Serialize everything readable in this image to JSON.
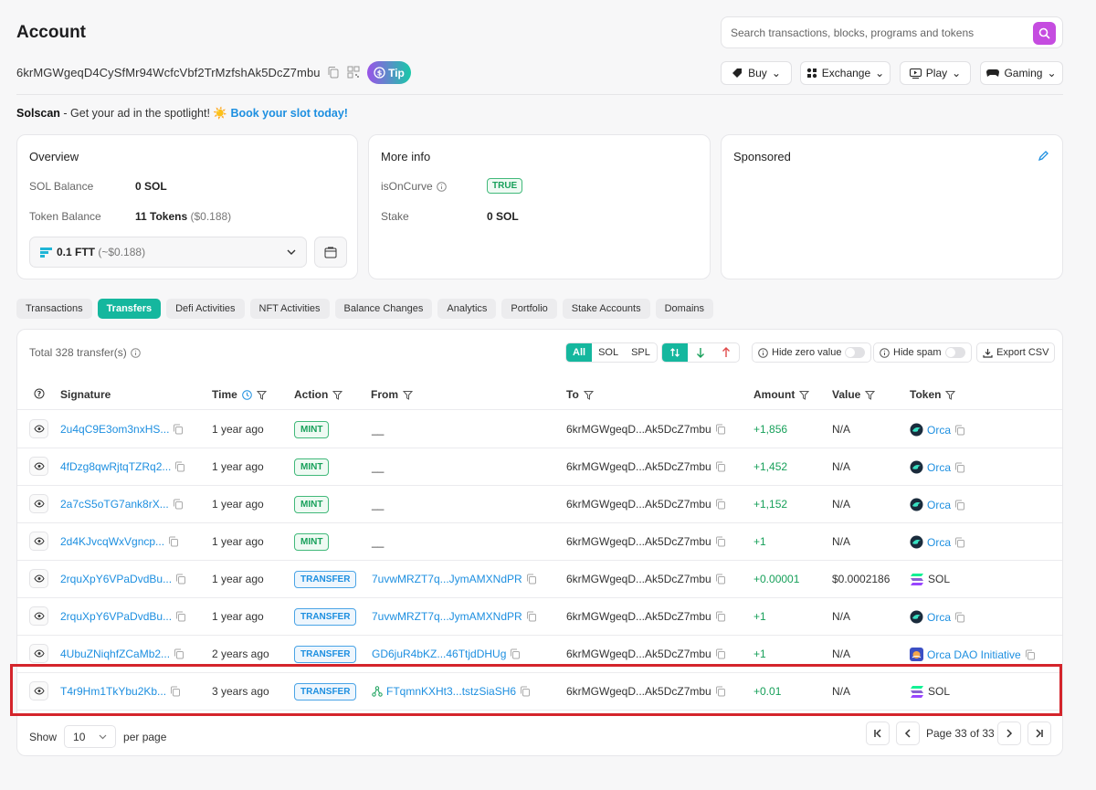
{
  "header": {
    "title": "Account",
    "search_placeholder": "Search transactions, blocks, programs and tokens",
    "address": "6krMGWgeqD4CySfMr94WcfcVbf2TrMzfshAk5DcZ7mbu",
    "tip_label": "Tip",
    "nav": [
      {
        "label": "Buy",
        "icon": "buy-icon"
      },
      {
        "label": "Exchange",
        "icon": "exchange-icon"
      },
      {
        "label": "Play",
        "icon": "play-icon"
      },
      {
        "label": "Gaming",
        "icon": "gamepad-icon"
      }
    ]
  },
  "ad": {
    "brand": "Solscan",
    "text": " - Get your ad in the spotlight! ",
    "emoji": "☀️",
    "link": "Book your slot today!"
  },
  "overview": {
    "title": "Overview",
    "sol_balance_label": "SOL Balance",
    "sol_balance_value": "0 SOL",
    "token_balance_label": "Token Balance",
    "token_balance_value": "11 Tokens",
    "token_balance_usd": "($0.188)",
    "selected_token": "0.1 FTT",
    "selected_token_usd": "(~$0.188)"
  },
  "more_info": {
    "title": "More info",
    "curve_label": "isOnCurve",
    "curve_value": "TRUE",
    "stake_label": "Stake",
    "stake_value": "0 SOL"
  },
  "sponsored": {
    "title": "Sponsored"
  },
  "tabs": [
    "Transactions",
    "Transfers",
    "Defi Activities",
    "NFT Activities",
    "Balance Changes",
    "Analytics",
    "Portfolio",
    "Stake Accounts",
    "Domains"
  ],
  "active_tab": "Transfers",
  "table": {
    "total": "Total 328 transfer(s)",
    "filter_type": [
      "All",
      "SOL",
      "SPL"
    ],
    "hide_zero": "Hide zero value",
    "hide_spam": "Hide spam",
    "export": "Export CSV",
    "columns": [
      "Signature",
      "Time",
      "Action",
      "From",
      "To",
      "Amount",
      "Value",
      "Token"
    ],
    "rows": [
      {
        "signature": "2u4qC9E3om3nxHS...",
        "time": "1 year ago",
        "action": "MINT",
        "from": "__",
        "to": "6krMGWgeqD...Ak5DcZ7mbu",
        "amount": "+1,856",
        "value": "N/A",
        "token": "Orca",
        "token_icon": "orca"
      },
      {
        "signature": "4fDzg8qwRjtqTZRq2...",
        "time": "1 year ago",
        "action": "MINT",
        "from": "__",
        "to": "6krMGWgeqD...Ak5DcZ7mbu",
        "amount": "+1,452",
        "value": "N/A",
        "token": "Orca",
        "token_icon": "orca"
      },
      {
        "signature": "2a7cS5oTG7ank8rX...",
        "time": "1 year ago",
        "action": "MINT",
        "from": "__",
        "to": "6krMGWgeqD...Ak5DcZ7mbu",
        "amount": "+1,152",
        "value": "N/A",
        "token": "Orca",
        "token_icon": "orca"
      },
      {
        "signature": "2d4KJvcqWxVgncp...",
        "time": "1 year ago",
        "action": "MINT",
        "from": "__",
        "to": "6krMGWgeqD...Ak5DcZ7mbu",
        "amount": "+1",
        "value": "N/A",
        "token": "Orca",
        "token_icon": "orca"
      },
      {
        "signature": "2rquXpY6VPaDvdBu...",
        "time": "1 year ago",
        "action": "TRANSFER",
        "from": "7uvwMRZT7q...JymAMXNdPR",
        "to": "6krMGWgeqD...Ak5DcZ7mbu",
        "amount": "+0.00001",
        "value": "$0.0002186",
        "token": "SOL",
        "token_icon": "sol"
      },
      {
        "signature": "2rquXpY6VPaDvdBu...",
        "time": "1 year ago",
        "action": "TRANSFER",
        "from": "7uvwMRZT7q...JymAMXNdPR",
        "to": "6krMGWgeqD...Ak5DcZ7mbu",
        "amount": "+1",
        "value": "N/A",
        "token": "Orca",
        "token_icon": "orca"
      },
      {
        "signature": "4UbuZNiqhfZCaMb2...",
        "time": "2 years ago",
        "action": "TRANSFER",
        "from": "GD6juR4bKZ...46TtjdDHUg",
        "to": "6krMGWgeqD...Ak5DcZ7mbu",
        "amount": "+1",
        "value": "N/A",
        "token": "Orca DAO Initiative",
        "token_icon": "dao"
      },
      {
        "signature": "T4r9Hm1TkYbu2Kb...",
        "time": "3 years ago",
        "action": "TRANSFER",
        "from": "FTqmnKXHt3...tstzSiaSH6",
        "to": "6krMGWgeqD...Ak5DcZ7mbu",
        "amount": "+0.01",
        "value": "N/A",
        "token": "SOL",
        "token_icon": "sol"
      }
    ]
  },
  "pagination": {
    "show_label": "Show",
    "per_page_value": "10",
    "per_page_label": "per page",
    "page_text": "Page 33 of 33"
  },
  "colors": {
    "accent": "#15b79e",
    "link": "#1d8fe0",
    "positive": "#17a05a",
    "highlight": "#d4242b",
    "search": "#c54ce0"
  }
}
